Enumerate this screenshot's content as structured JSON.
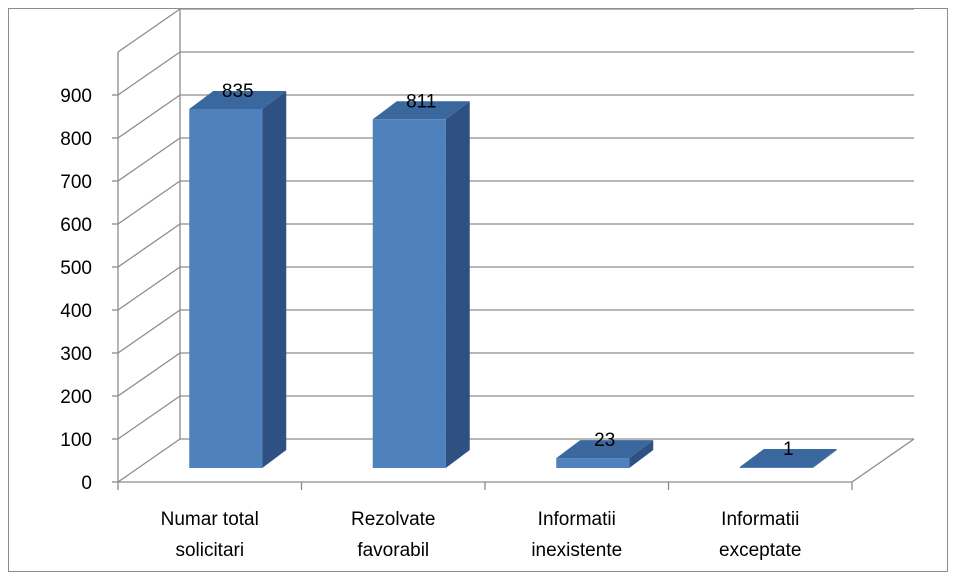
{
  "chart_data": {
    "type": "bar",
    "categories": [
      [
        "Numar total",
        "solicitari"
      ],
      [
        "Rezolvate",
        "favorabil"
      ],
      [
        "Informatii",
        "inexistente"
      ],
      [
        "Informatii",
        "exceptate"
      ]
    ],
    "values": [
      835,
      811,
      23,
      1
    ],
    "data_labels": [
      "835",
      "811",
      "23",
      "1"
    ],
    "y_ticks": [
      "0",
      "100",
      "200",
      "300",
      "400",
      "500",
      "600",
      "700",
      "800",
      "900"
    ],
    "ylim": [
      0,
      900
    ],
    "grid": true,
    "three_d": true,
    "legend": "none",
    "title": "",
    "xlabel": "",
    "ylabel": ""
  },
  "colors": {
    "bar_front": "#4f81bd",
    "bar_top": "#3a679e",
    "bar_side": "#2f5082",
    "grid": "#8c8c8c",
    "axis": "#8c8c8c"
  }
}
